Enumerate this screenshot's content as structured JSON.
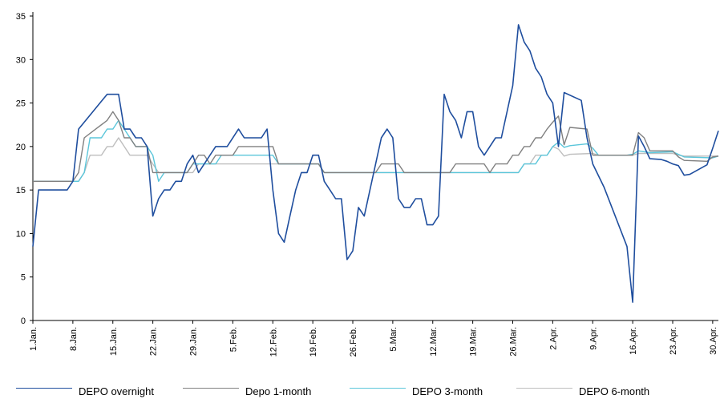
{
  "chart_data": {
    "type": "line",
    "title": "",
    "xlabel": "",
    "ylabel": "",
    "ylim": [
      0,
      35
    ],
    "y_ticks": [
      0,
      5,
      10,
      15,
      20,
      25,
      30,
      35
    ],
    "x_range_days": [
      0,
      120
    ],
    "x_ticks": [
      {
        "day": 0,
        "label": "1.Jan."
      },
      {
        "day": 7,
        "label": "8.Jan."
      },
      {
        "day": 14,
        "label": "15.Jan."
      },
      {
        "day": 21,
        "label": "22.Jan."
      },
      {
        "day": 28,
        "label": "29.Jan."
      },
      {
        "day": 35,
        "label": "5.Feb."
      },
      {
        "day": 42,
        "label": "12.Feb."
      },
      {
        "day": 49,
        "label": "19.Feb."
      },
      {
        "day": 56,
        "label": "26.Feb."
      },
      {
        "day": 63,
        "label": "5.Mar."
      },
      {
        "day": 70,
        "label": "12.Mar."
      },
      {
        "day": 77,
        "label": "19.Mar."
      },
      {
        "day": 84,
        "label": "26.Mar."
      },
      {
        "day": 91,
        "label": "2.Apr."
      },
      {
        "day": 98,
        "label": "9.Apr."
      },
      {
        "day": 105,
        "label": "16.Apr."
      },
      {
        "day": 112,
        "label": "23.Apr."
      },
      {
        "day": 119,
        "label": "30.Apr."
      }
    ],
    "grid": false,
    "legend_position": "bottom",
    "series": [
      {
        "name": "DEPO overnight",
        "color": "#1F4E9E",
        "points": [
          [
            0,
            8.5
          ],
          [
            1,
            15
          ],
          [
            6,
            15
          ],
          [
            7,
            16
          ],
          [
            8,
            22
          ],
          [
            13,
            26
          ],
          [
            15,
            26
          ],
          [
            16,
            22
          ],
          [
            17,
            22
          ],
          [
            18,
            21
          ],
          [
            19,
            21
          ],
          [
            20,
            20
          ],
          [
            21,
            12
          ],
          [
            22,
            14
          ],
          [
            23,
            15
          ],
          [
            24,
            15
          ],
          [
            25,
            16
          ],
          [
            26,
            16
          ],
          [
            27,
            18
          ],
          [
            28,
            19
          ],
          [
            29,
            17
          ],
          [
            30,
            18
          ],
          [
            31,
            19
          ],
          [
            32,
            20
          ],
          [
            34,
            20
          ],
          [
            36,
            22
          ],
          [
            37,
            21
          ],
          [
            40,
            21
          ],
          [
            41,
            22
          ],
          [
            42,
            15
          ],
          [
            43,
            10
          ],
          [
            44,
            9
          ],
          [
            45,
            12
          ],
          [
            46,
            15
          ],
          [
            47,
            17
          ],
          [
            48,
            17
          ],
          [
            49,
            19
          ],
          [
            50,
            19
          ],
          [
            51,
            16
          ],
          [
            52,
            15
          ],
          [
            53,
            14
          ],
          [
            54,
            14
          ],
          [
            55,
            7
          ],
          [
            56,
            8
          ],
          [
            57,
            13
          ],
          [
            58,
            12
          ],
          [
            59,
            15
          ],
          [
            60,
            18
          ],
          [
            61,
            21
          ],
          [
            62,
            22
          ],
          [
            63,
            21
          ],
          [
            64,
            14
          ],
          [
            65,
            13
          ],
          [
            66,
            13
          ],
          [
            67,
            14
          ],
          [
            68,
            14
          ],
          [
            69,
            11
          ],
          [
            70,
            11
          ],
          [
            71,
            12
          ],
          [
            72,
            26
          ],
          [
            73,
            24
          ],
          [
            74,
            23
          ],
          [
            75,
            21
          ],
          [
            76,
            24
          ],
          [
            77,
            24
          ],
          [
            78,
            20
          ],
          [
            79,
            19
          ],
          [
            81,
            21
          ],
          [
            82,
            21
          ],
          [
            84,
            27
          ],
          [
            85,
            34
          ],
          [
            86,
            32
          ],
          [
            87,
            31
          ],
          [
            88,
            29
          ],
          [
            89,
            28
          ],
          [
            90,
            26
          ],
          [
            91,
            25
          ],
          [
            92,
            20
          ],
          [
            93,
            26.2
          ],
          [
            96,
            25.3
          ],
          [
            97,
            21
          ],
          [
            98,
            18
          ],
          [
            100,
            15.3
          ],
          [
            104,
            8.5
          ],
          [
            105,
            2.1
          ],
          [
            106,
            21.2
          ],
          [
            107,
            20
          ],
          [
            108,
            18.6
          ],
          [
            110,
            18.5
          ],
          [
            111,
            18.3
          ],
          [
            112,
            18
          ],
          [
            113,
            17.8
          ],
          [
            114,
            16.7
          ],
          [
            115,
            16.8
          ],
          [
            118,
            17.9
          ],
          [
            119,
            19.8
          ],
          [
            120,
            21.8
          ]
        ]
      },
      {
        "name": "Depo 1-month",
        "color": "#808080",
        "points": [
          [
            0,
            16
          ],
          [
            7,
            16
          ],
          [
            8,
            17
          ],
          [
            9,
            21
          ],
          [
            11,
            22
          ],
          [
            13,
            23
          ],
          [
            14,
            24
          ],
          [
            15,
            23
          ],
          [
            16,
            21
          ],
          [
            17,
            21
          ],
          [
            18,
            20
          ],
          [
            20,
            20
          ],
          [
            21,
            17
          ],
          [
            27,
            17
          ],
          [
            28,
            18
          ],
          [
            29,
            19
          ],
          [
            30,
            19
          ],
          [
            31,
            18
          ],
          [
            32,
            19
          ],
          [
            35,
            19
          ],
          [
            36,
            20
          ],
          [
            42,
            20
          ],
          [
            43,
            18
          ],
          [
            50,
            18
          ],
          [
            51,
            17
          ],
          [
            60,
            17
          ],
          [
            61,
            18
          ],
          [
            64,
            18
          ],
          [
            65,
            17
          ],
          [
            73,
            17
          ],
          [
            74,
            18
          ],
          [
            79,
            18
          ],
          [
            80,
            17
          ],
          [
            81,
            18
          ],
          [
            83,
            18
          ],
          [
            84,
            19
          ],
          [
            85,
            19
          ],
          [
            86,
            20
          ],
          [
            87,
            20
          ],
          [
            88,
            21
          ],
          [
            89,
            21
          ],
          [
            90,
            22
          ],
          [
            91,
            22.8
          ],
          [
            92,
            23.5
          ],
          [
            93,
            20.2
          ],
          [
            94,
            22.2
          ],
          [
            97,
            22
          ],
          [
            98,
            19
          ],
          [
            105,
            19
          ],
          [
            106,
            21.6
          ],
          [
            107,
            21
          ],
          [
            108,
            19.5
          ],
          [
            112,
            19.5
          ],
          [
            113,
            18.8
          ],
          [
            114,
            18.4
          ],
          [
            118,
            18.3
          ],
          [
            119,
            18.8
          ],
          [
            120,
            18.9
          ]
        ]
      },
      {
        "name": "DEPO 3-month",
        "color": "#5BC6DA",
        "points": [
          [
            0,
            16
          ],
          [
            8,
            16
          ],
          [
            9,
            17
          ],
          [
            10,
            21
          ],
          [
            12,
            21
          ],
          [
            13,
            22
          ],
          [
            14,
            22
          ],
          [
            15,
            23
          ],
          [
            16,
            22
          ],
          [
            17,
            21
          ],
          [
            18,
            20
          ],
          [
            20,
            20
          ],
          [
            21,
            19
          ],
          [
            22,
            16
          ],
          [
            23,
            17
          ],
          [
            27,
            17
          ],
          [
            28,
            18
          ],
          [
            32,
            18
          ],
          [
            33,
            19
          ],
          [
            41,
            19
          ],
          [
            42,
            19
          ],
          [
            43,
            18
          ],
          [
            50,
            18
          ],
          [
            51,
            17
          ],
          [
            85,
            17
          ],
          [
            86,
            18
          ],
          [
            88,
            18
          ],
          [
            89,
            19
          ],
          [
            90,
            19
          ],
          [
            91,
            20
          ],
          [
            92,
            20.5
          ],
          [
            93,
            19.9
          ],
          [
            94,
            20.1
          ],
          [
            97,
            20.3
          ],
          [
            98,
            19.8
          ],
          [
            99,
            19
          ],
          [
            104,
            19
          ],
          [
            105,
            19.1
          ],
          [
            106,
            19.5
          ],
          [
            108,
            19.3
          ],
          [
            112,
            19.4
          ],
          [
            113,
            19.1
          ],
          [
            114,
            18.8
          ],
          [
            119,
            18.7
          ],
          [
            120,
            18.9
          ]
        ]
      },
      {
        "name": "DEPO 6-month",
        "color": "#BEBEBE",
        "points": [
          [
            0,
            16
          ],
          [
            8,
            16
          ],
          [
            9,
            17
          ],
          [
            10,
            19
          ],
          [
            12,
            19
          ],
          [
            13,
            20
          ],
          [
            14,
            20
          ],
          [
            15,
            21
          ],
          [
            16,
            20
          ],
          [
            17,
            19
          ],
          [
            20,
            19
          ],
          [
            21,
            18
          ],
          [
            22,
            17
          ],
          [
            23,
            17
          ],
          [
            28,
            17
          ],
          [
            29,
            18
          ],
          [
            50,
            18
          ],
          [
            51,
            17
          ],
          [
            85,
            17
          ],
          [
            86,
            18
          ],
          [
            87,
            18
          ],
          [
            88,
            19
          ],
          [
            90,
            19
          ],
          [
            91,
            20
          ],
          [
            92,
            19.7
          ],
          [
            93,
            18.9
          ],
          [
            94,
            19.1
          ],
          [
            98,
            19.2
          ],
          [
            99,
            19
          ],
          [
            105,
            19
          ],
          [
            106,
            19.2
          ],
          [
            112,
            19.2
          ],
          [
            113,
            19
          ],
          [
            114,
            18.9
          ],
          [
            120,
            18.9
          ]
        ]
      }
    ]
  }
}
